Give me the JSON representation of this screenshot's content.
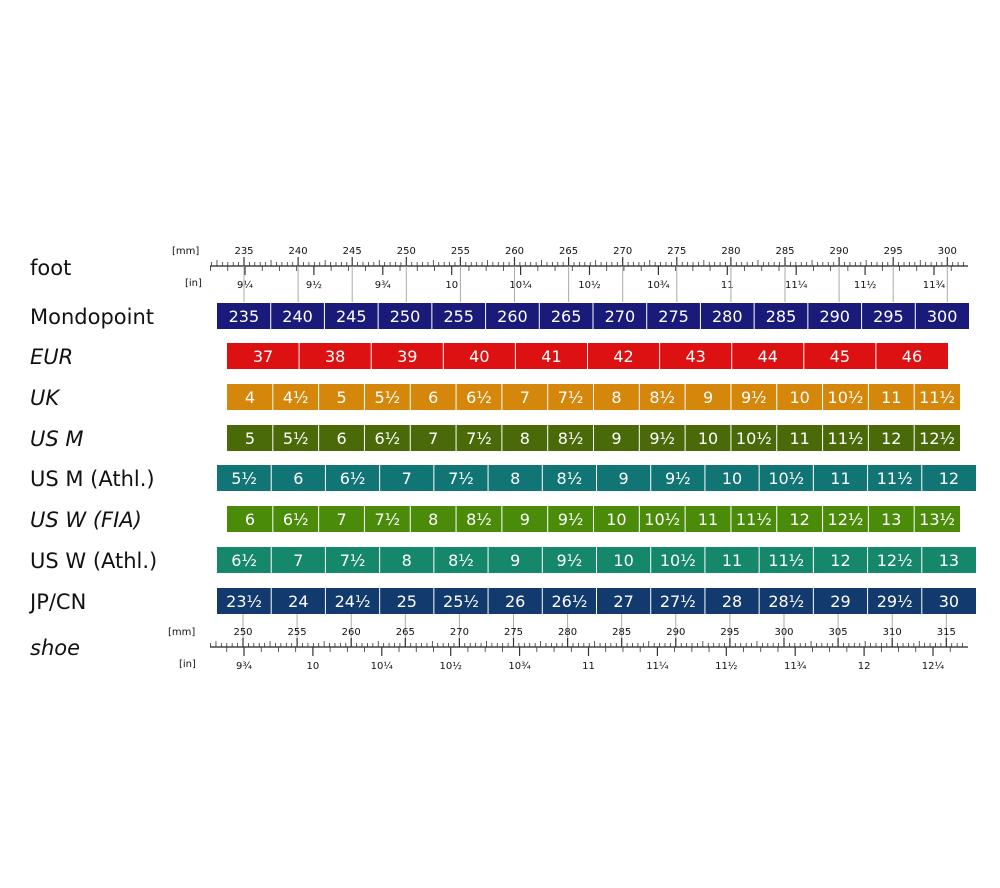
{
  "foot_label": "foot",
  "shoe_label": "shoe",
  "foot_scale": {
    "mm_unit": "[mm]",
    "in_unit": "[in]",
    "mm_labels": [
      "235",
      "240",
      "245",
      "250",
      "255",
      "260",
      "265",
      "270",
      "275",
      "280",
      "285",
      "290",
      "295",
      "300"
    ],
    "in_labels": [
      "9¼",
      "9½",
      "9¾",
      "10",
      "10¼",
      "10½",
      "10¾",
      "11",
      "11¼",
      "11½",
      "11¾"
    ]
  },
  "shoe_scale": {
    "mm_unit": "[mm]",
    "in_unit": "[in]",
    "mm_labels": [
      "250",
      "255",
      "260",
      "265",
      "270",
      "275",
      "280",
      "285",
      "290",
      "295",
      "300",
      "305",
      "310",
      "315"
    ],
    "in_labels": [
      "9¾",
      "10",
      "10¼",
      "10½",
      "10¾",
      "11",
      "11¼",
      "11½",
      "11¾",
      "12",
      "12¼"
    ]
  },
  "rows": [
    {
      "label": "Mondopoint",
      "italic": false,
      "color": "#1a1a7a",
      "cells": [
        "235",
        "240",
        "245",
        "250",
        "255",
        "260",
        "265",
        "270",
        "275",
        "280",
        "285",
        "290",
        "295",
        "300"
      ]
    },
    {
      "label": "EUR",
      "italic": true,
      "color": "#dd1111",
      "cells": [
        "37",
        "38",
        "39",
        "40",
        "41",
        "42",
        "43",
        "44",
        "45",
        "46"
      ]
    },
    {
      "label": "UK",
      "italic": true,
      "color": "#d4870a",
      "cells": [
        "4",
        "4½",
        "5",
        "5½",
        "6",
        "6½",
        "7",
        "7½",
        "8",
        "8½",
        "9",
        "9½",
        "10",
        "10½",
        "11",
        "11½"
      ]
    },
    {
      "label": "US M",
      "italic": true,
      "color": "#4a6a0a",
      "cells": [
        "5",
        "5½",
        "6",
        "6½",
        "7",
        "7½",
        "8",
        "8½",
        "9",
        "9½",
        "10",
        "10½",
        "11",
        "11½",
        "12",
        "12½"
      ]
    },
    {
      "label": "US M (Athl.)",
      "italic": false,
      "color": "#117575",
      "cells": [
        "5½",
        "6",
        "6½",
        "7",
        "7½",
        "8",
        "8½",
        "9",
        "9½",
        "10",
        "10½",
        "11",
        "11½",
        "12"
      ]
    },
    {
      "label": "US W (FIA)",
      "italic": true,
      "color": "#4a8c0a",
      "cells": [
        "6",
        "6½",
        "7",
        "7½",
        "8",
        "8½",
        "9",
        "9½",
        "10",
        "10½",
        "11",
        "11½",
        "12",
        "12½",
        "13",
        "13½"
      ]
    },
    {
      "label": "US W (Athl.)",
      "italic": false,
      "color": "#15876a",
      "cells": [
        "6½",
        "7",
        "7½",
        "8",
        "8½",
        "9",
        "9½",
        "10",
        "10½",
        "11",
        "11½",
        "12",
        "12½",
        "13"
      ]
    },
    {
      "label": "JP/CN",
      "italic": false,
      "color": "#123a6e",
      "cells": [
        "23½",
        "24",
        "24½",
        "25",
        "25½",
        "26",
        "26½",
        "27",
        "27½",
        "28",
        "28½",
        "29",
        "29½",
        "30"
      ]
    }
  ]
}
